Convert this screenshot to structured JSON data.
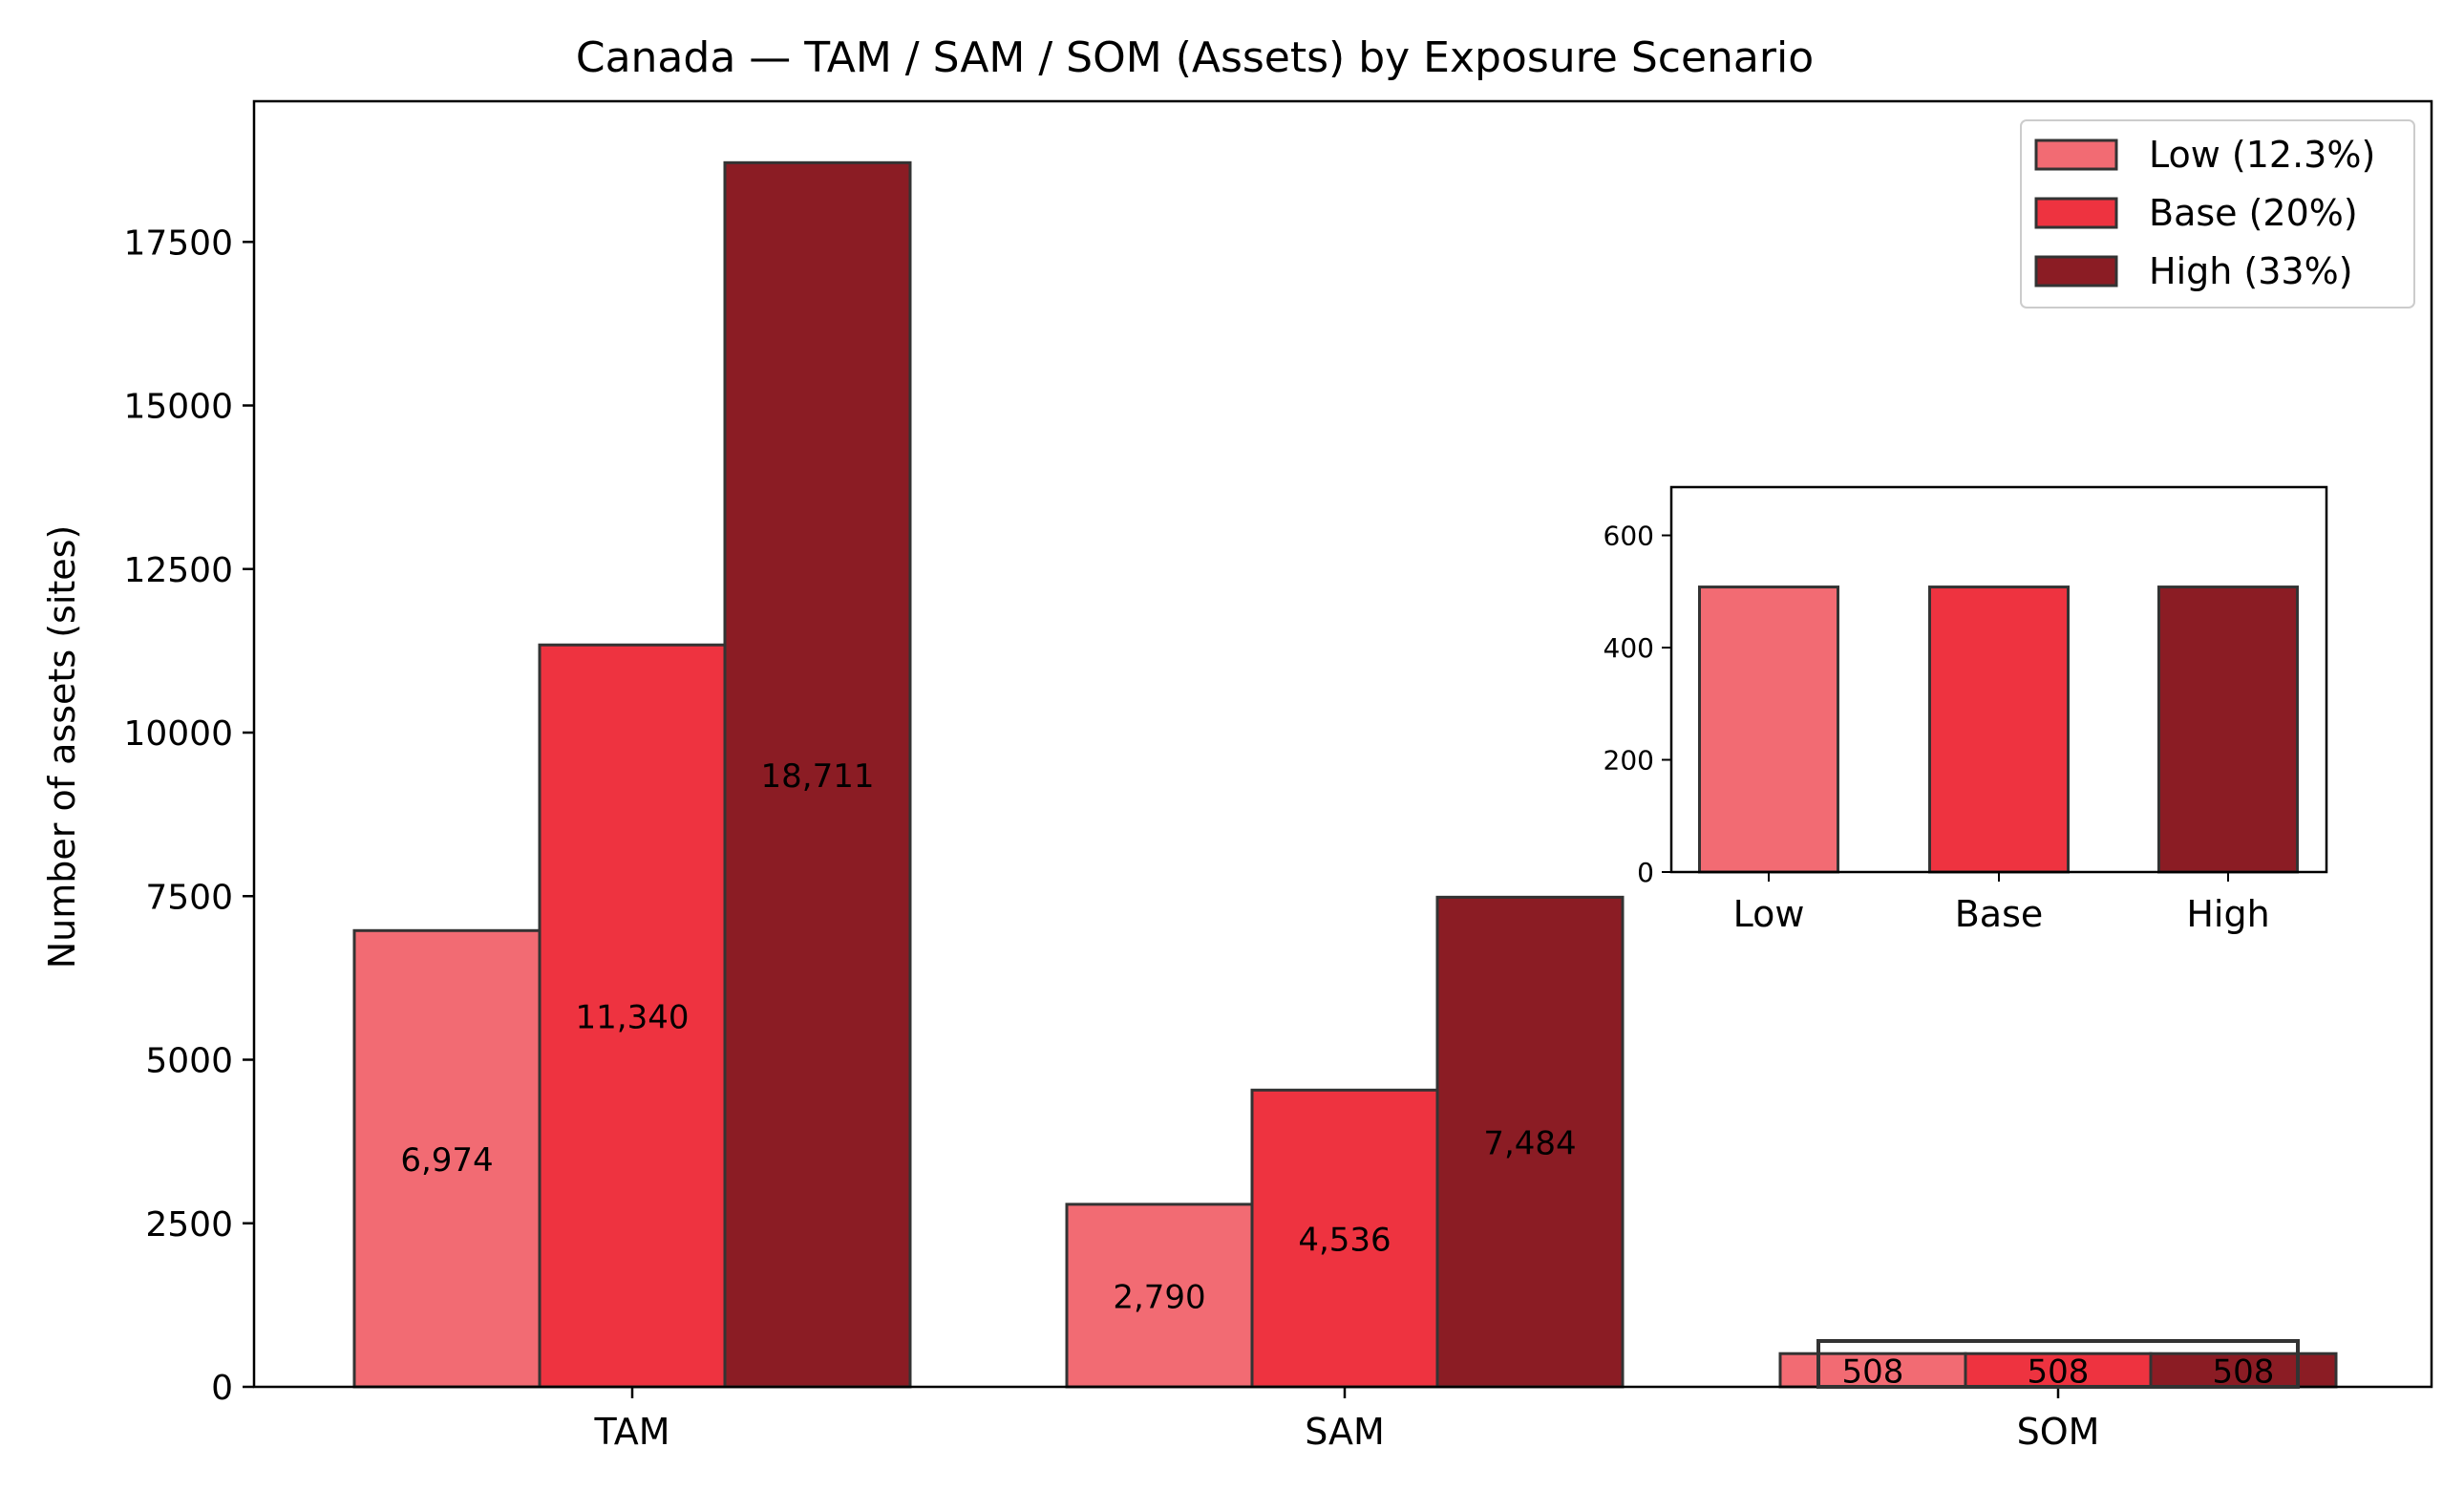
{
  "chart_data": [
    {
      "type": "bar",
      "title": "Canada — TAM / SAM / SOM (Assets) by Exposure Scenario",
      "xlabel": "",
      "ylabel": "Number of assets (sites)",
      "categories": [
        "TAM",
        "SAM",
        "SOM"
      ],
      "series": [
        {
          "name": "Low (12.3%)",
          "values": [
            6974,
            2790,
            508
          ],
          "labels": [
            "6,974",
            "2,790",
            "508"
          ],
          "color": "#F26B73"
        },
        {
          "name": "Base (20%)",
          "values": [
            11340,
            4536,
            508
          ],
          "labels": [
            "11,340",
            "4,536",
            "508"
          ],
          "color": "#EE3340"
        },
        {
          "name": "High (33%)",
          "values": [
            18711,
            7484,
            508
          ],
          "labels": [
            "18,711",
            "7,484",
            "508"
          ],
          "color": "#8B1C24"
        }
      ],
      "ylim": [
        0,
        19650
      ],
      "yticks": [
        0,
        2500,
        5000,
        7500,
        10000,
        12500,
        15000,
        17500
      ],
      "ytick_labels": [
        "0",
        "2500",
        "5000",
        "7500",
        "10000",
        "12500",
        "15000",
        "17500"
      ],
      "grid": false,
      "legend_position": "top-right",
      "edge_color": "#333333"
    },
    {
      "type": "bar",
      "title": "",
      "xlabel": "",
      "ylabel": "",
      "categories": [
        "Low",
        "Base",
        "High"
      ],
      "values": [
        508,
        508,
        508
      ],
      "colors": [
        "#F26B73",
        "#EE3340",
        "#8B1C24"
      ],
      "ylim": [
        0,
        686
      ],
      "yticks": [
        0,
        200,
        400,
        600
      ],
      "ytick_labels": [
        "0",
        "200",
        "400",
        "600"
      ],
      "grid": false,
      "placement": "inset, upper right of main plot"
    }
  ]
}
